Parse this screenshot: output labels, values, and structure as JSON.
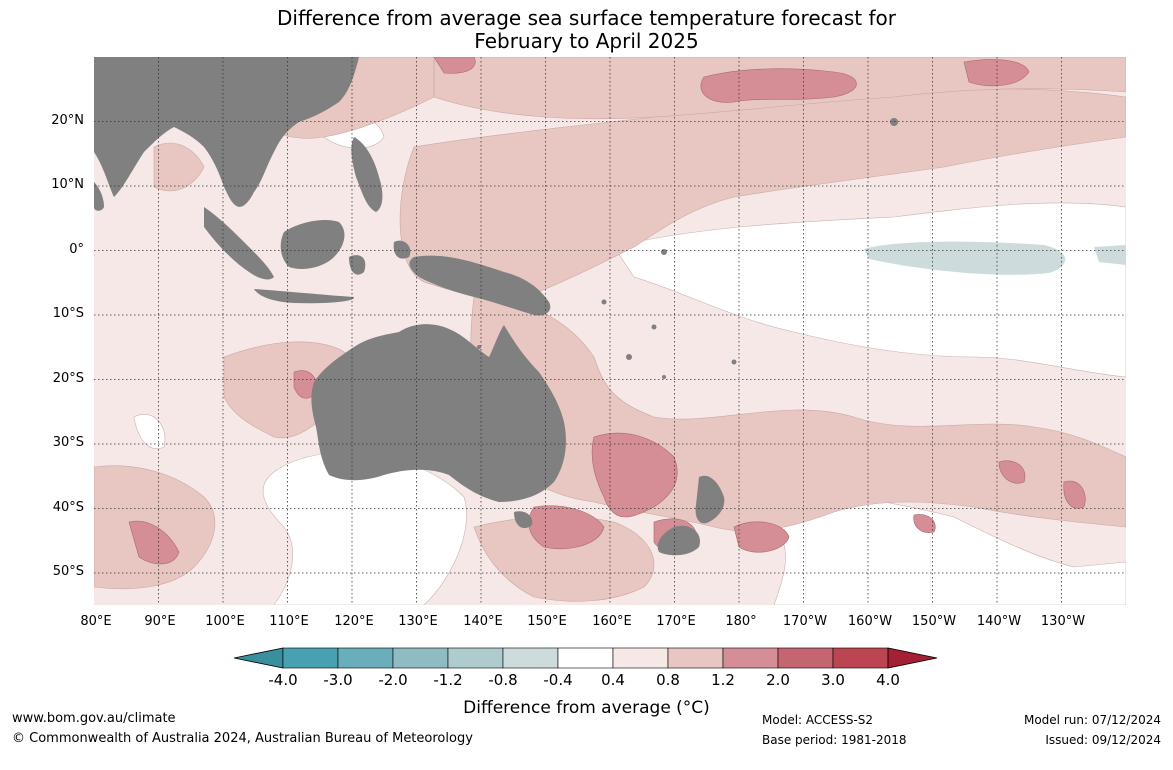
{
  "title": {
    "line1": "Difference from average sea surface temperature forecast for",
    "line2": "February to April 2025"
  },
  "map": {
    "latitude_labels": [
      "20°N",
      "10°N",
      "0°",
      "10°S",
      "20°S",
      "30°S",
      "40°S",
      "50°S"
    ],
    "longitude_labels": [
      "80°E",
      "90°E",
      "100°E",
      "110°E",
      "120°E",
      "130°E",
      "140°E",
      "150°E",
      "160°E",
      "170°E",
      "180°",
      "170°W",
      "160°W",
      "150°W",
      "140°W",
      "130°W"
    ],
    "land_color": "#808080"
  },
  "colorbar": {
    "ticks": [
      "-4.0",
      "-3.0",
      "-2.0",
      "-1.2",
      "-0.8",
      "-0.4",
      "0.4",
      "0.8",
      "1.2",
      "2.0",
      "3.0",
      "4.0"
    ],
    "colors": [
      "#3a8f9d",
      "#46a1b1",
      "#6aaebb",
      "#8fbcc3",
      "#aecbce",
      "#cddbdc",
      "#ffffff",
      "#f5e8e6",
      "#e8c6c2",
      "#d58e95",
      "#c56570",
      "#bb4550",
      "#a51f35"
    ],
    "label": "Difference from average (°C)"
  },
  "footer": {
    "website": "www.bom.gov.au/climate",
    "copyright": "© Commonwealth of Australia 2024, Australian Bureau of Meteorology",
    "model": "Model: ACCESS-S2",
    "base_period": "Base period: 1981-2018",
    "model_run": "Model run: 07/12/2024",
    "issued": "Issued: 09/12/2024"
  }
}
